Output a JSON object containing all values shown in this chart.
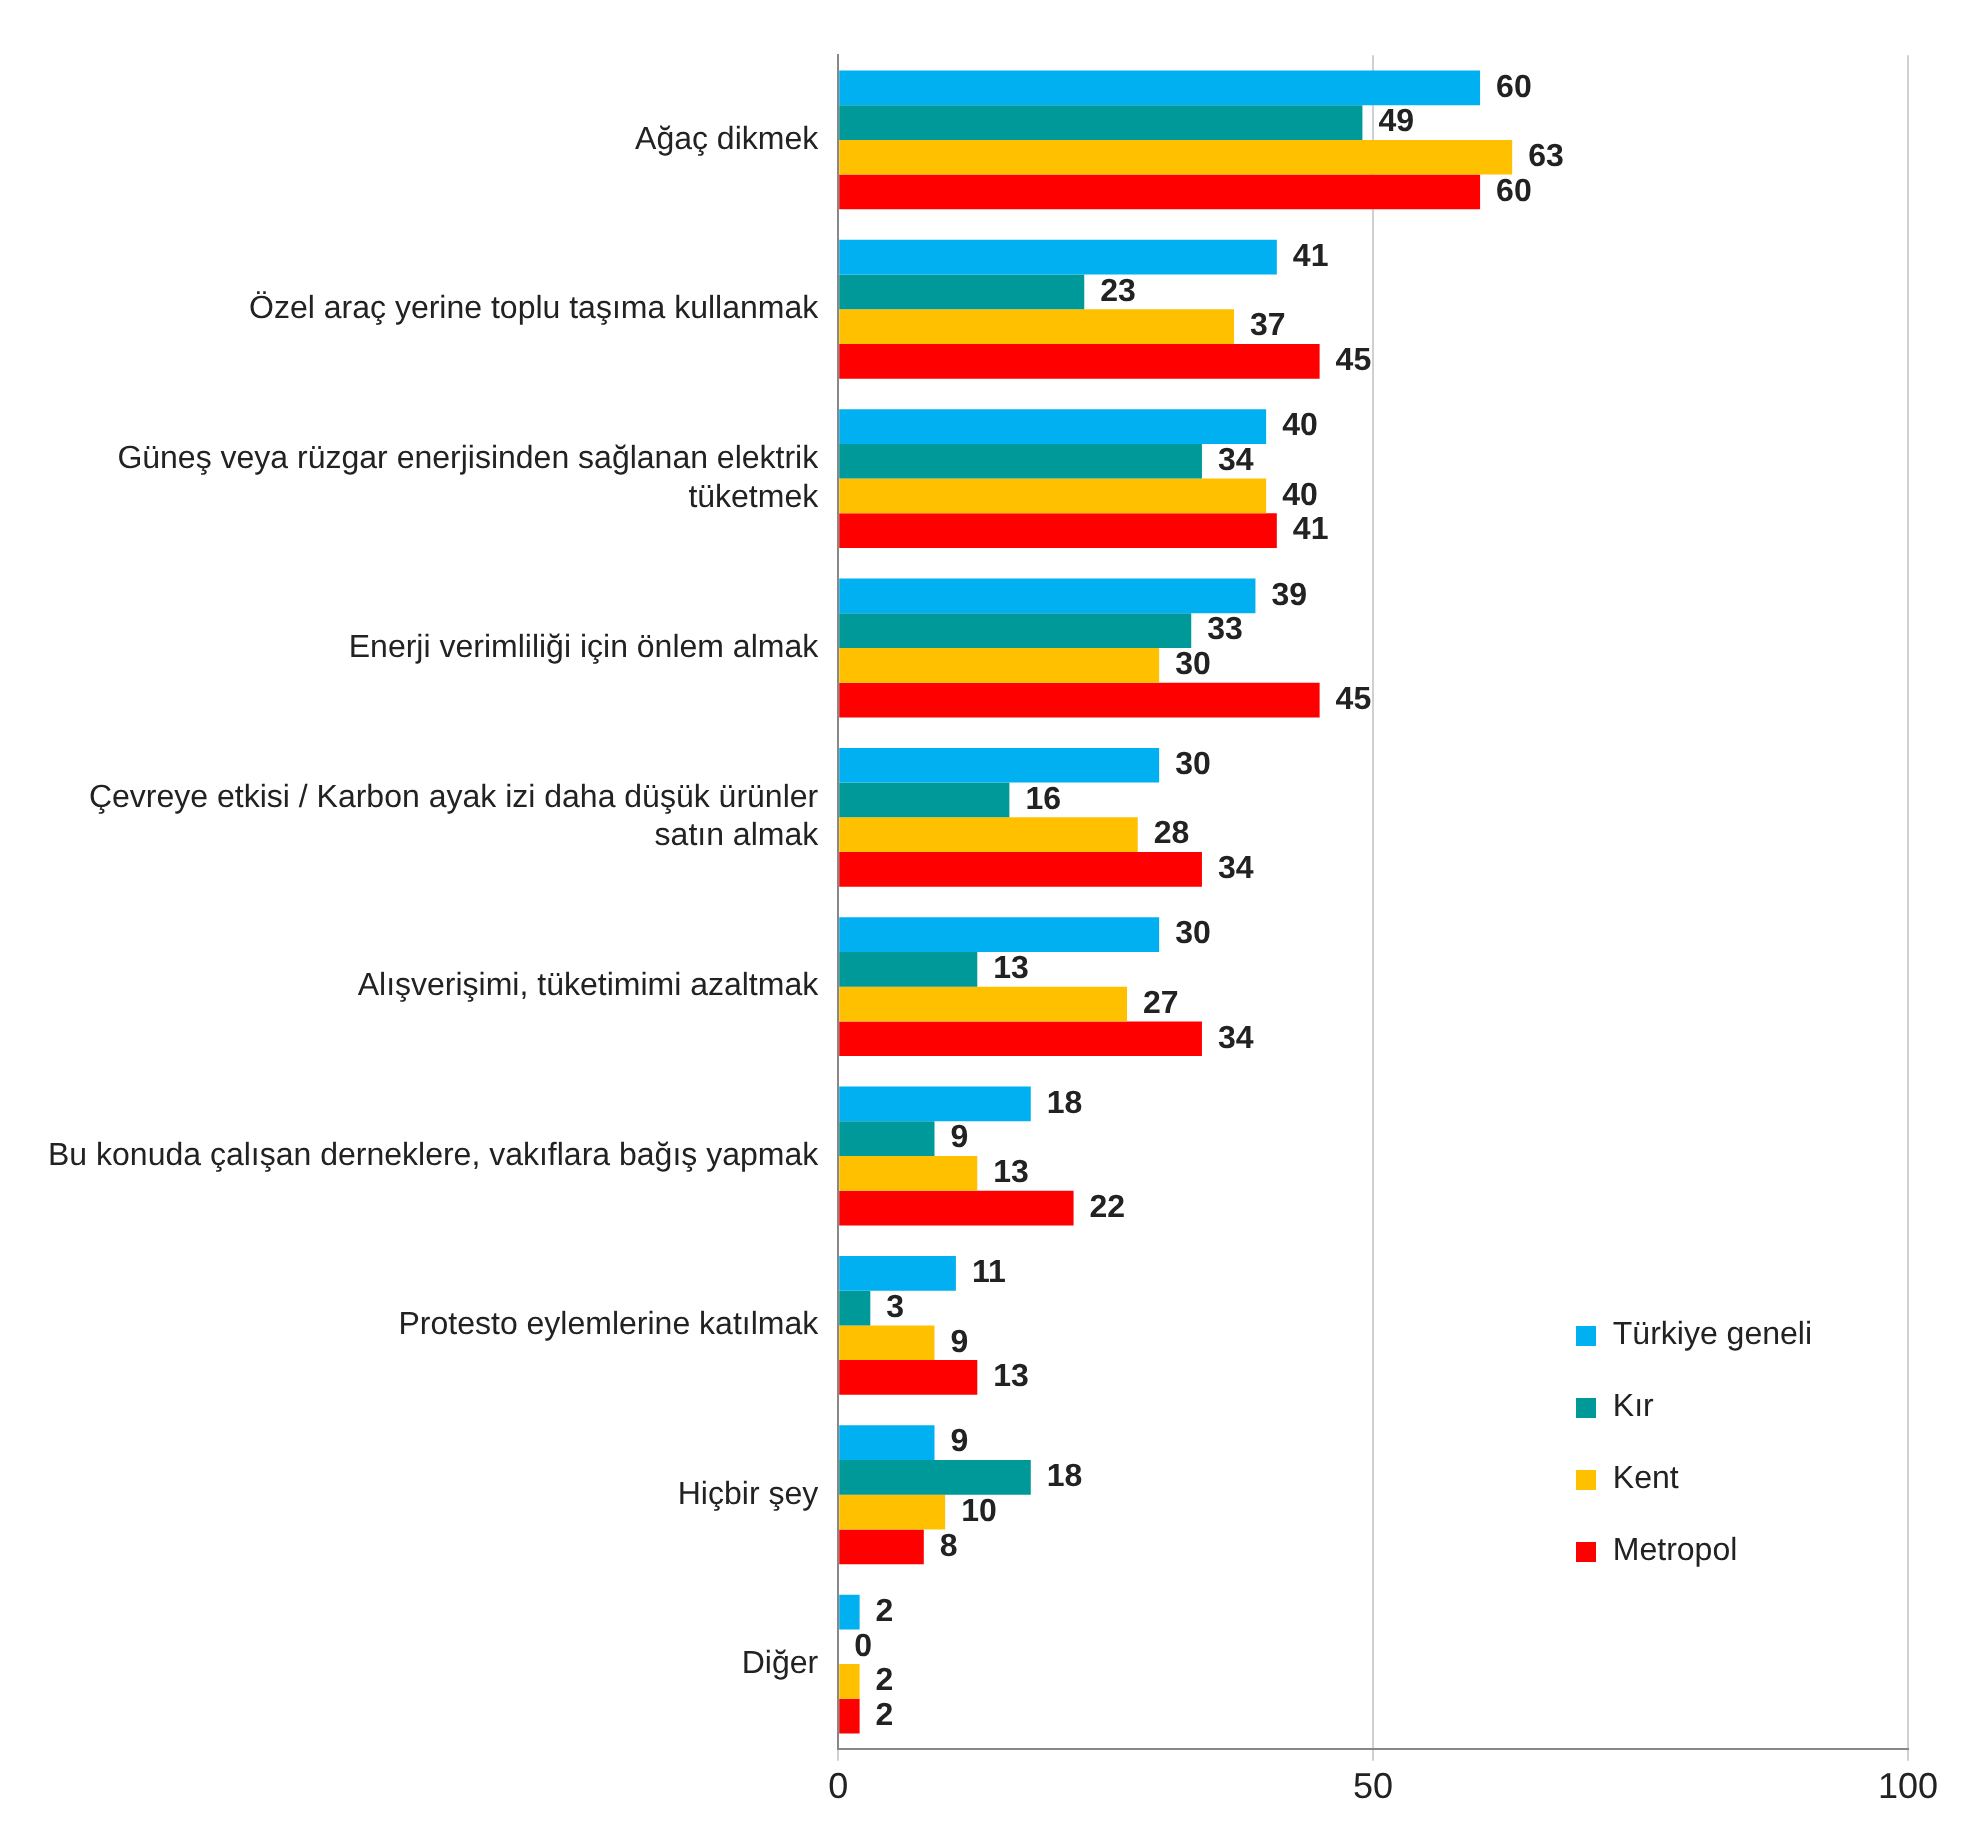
{
  "chart_data": {
    "type": "bar",
    "orientation": "horizontal",
    "categories": [
      "Ağaç dikmek",
      "Özel araç yerine toplu taşıma kullanmak",
      "Güneş veya rüzgar enerjisinden sağlanan elektrik tüketmek",
      "Enerji verimliliği için önlem almak",
      "Çevreye etkisi / Karbon ayak izi daha düşük ürünler satın almak",
      "Alışverişimi, tüketimimi azaltmak",
      "Bu konuda çalışan derneklere, vakıflara bağış yapmak",
      "Protesto eylemlerine katılmak",
      "Hiçbir şey",
      "Diğer"
    ],
    "series": [
      {
        "name": "Türkiye geneli",
        "color": "#00b0f0",
        "values": [
          60,
          41,
          40,
          39,
          30,
          30,
          18,
          11,
          9,
          2
        ]
      },
      {
        "name": "Kır",
        "color": "#009999",
        "values": [
          49,
          23,
          34,
          33,
          16,
          13,
          9,
          3,
          18,
          0
        ]
      },
      {
        "name": "Kent",
        "color": "#ffc000",
        "values": [
          63,
          37,
          40,
          30,
          28,
          27,
          13,
          9,
          10,
          2
        ]
      },
      {
        "name": "Metropol",
        "color": "#ff0000",
        "values": [
          60,
          45,
          41,
          45,
          34,
          34,
          22,
          13,
          8,
          2
        ]
      }
    ],
    "xlim": [
      0,
      100
    ],
    "xticks": [
      0,
      50,
      100
    ],
    "grid": "x",
    "legend": "bottom right",
    "data_labels": true
  }
}
